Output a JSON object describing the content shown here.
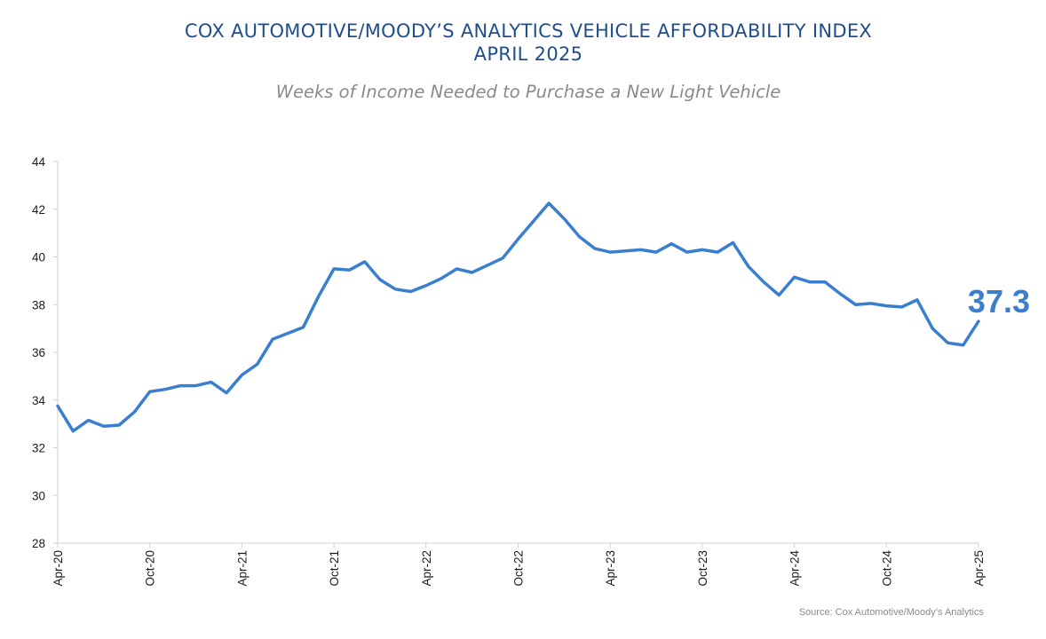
{
  "chart_data": {
    "type": "line",
    "title_line1": "COX AUTOMOTIVE/MOODY’S ANALYTICS VEHICLE AFFORDABILITY INDEX",
    "title_line2": "APRIL 2025",
    "subtitle": "Weeks of Income Needed to Purchase a New Light Vehicle",
    "source": "Source: Cox Automotive/Moody’s Analytics",
    "ylim": [
      28,
      44
    ],
    "yticks": [
      28,
      30,
      32,
      34,
      36,
      38,
      40,
      42,
      44
    ],
    "xticks": [
      "Apr-20",
      "Oct-20",
      "Apr-21",
      "Oct-21",
      "Apr-22",
      "Oct-22",
      "Apr-23",
      "Oct-23",
      "Apr-24",
      "Oct-24",
      "Apr-25"
    ],
    "callout_label": "37.3",
    "line_color": "#3a7fcf",
    "series": [
      {
        "name": "Weeks of Income",
        "values": [
          33.75,
          32.7,
          33.15,
          32.9,
          32.95,
          33.5,
          34.35,
          34.45,
          34.6,
          34.6,
          34.75,
          34.3,
          35.05,
          35.5,
          36.55,
          36.8,
          37.05,
          38.35,
          39.5,
          39.45,
          39.8,
          39.05,
          38.65,
          38.55,
          38.8,
          39.1,
          39.5,
          39.35,
          39.65,
          39.95,
          40.75,
          41.5,
          42.25,
          41.6,
          40.85,
          40.35,
          40.2,
          40.25,
          40.3,
          40.2,
          40.55,
          40.2,
          40.3,
          40.2,
          40.6,
          39.6,
          38.95,
          38.4,
          39.15,
          38.95,
          38.95,
          38.45,
          38.0,
          38.05,
          37.95,
          37.9,
          38.2,
          37.0,
          36.4,
          36.3,
          37.3
        ]
      }
    ]
  }
}
